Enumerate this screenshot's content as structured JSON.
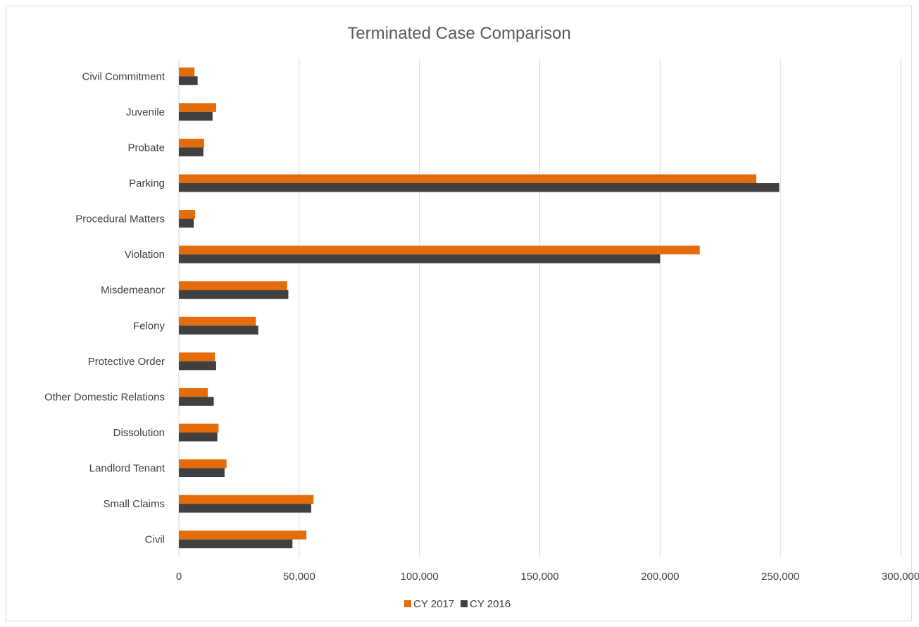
{
  "chart_data": {
    "type": "bar",
    "orientation": "horizontal",
    "title": "Terminated Case Comparison",
    "xlabel": "",
    "ylabel": "",
    "categories": [
      "Civil Commitment",
      "Juvenile",
      "Probate",
      "Parking",
      "Procedural Matters",
      "Violation",
      "Misdemeanor",
      "Felony",
      "Protective Order",
      "Other Domestic Relations",
      "Dissolution",
      "Landlord Tenant",
      "Small Claims",
      "Civil"
    ],
    "series": [
      {
        "name": "CY 2017",
        "color": "#e46c0a",
        "values": [
          6500,
          15500,
          10500,
          240000,
          6800,
          216500,
          45000,
          32000,
          15000,
          12000,
          16500,
          19800,
          56000,
          53000
        ]
      },
      {
        "name": "CY 2016",
        "color": "#404040",
        "values": [
          7800,
          14000,
          10200,
          249500,
          6200,
          200000,
          45500,
          33000,
          15500,
          14500,
          16000,
          19000,
          55000,
          47200
        ]
      }
    ],
    "xlim": [
      0,
      300000
    ],
    "xticks": [
      0,
      50000,
      100000,
      150000,
      200000,
      250000,
      300000
    ],
    "xtick_labels": [
      "0",
      "50,000",
      "100,000",
      "150,000",
      "200,000",
      "250,000",
      "300,000"
    ],
    "grid": true,
    "legend_position": "bottom"
  }
}
